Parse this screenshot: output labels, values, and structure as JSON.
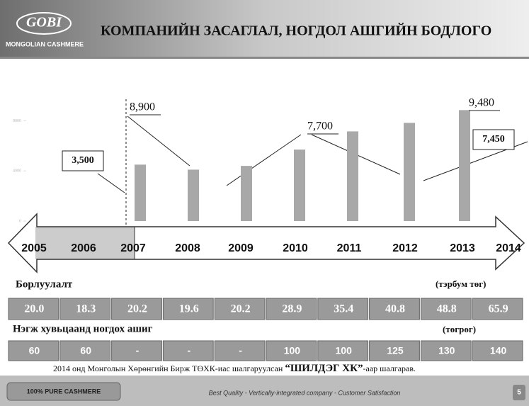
{
  "header": {
    "logo": "GOBI",
    "brand": "MONGOLIAN CASHMERE",
    "title": "КОМПАНИЙН ЗАСАГЛАЛ, НОГДОЛ АШГИЙН БОДЛОГО"
  },
  "chart_data": {
    "type": "bar",
    "categories": [
      "2007",
      "2008",
      "2009",
      "2010",
      "2011",
      "2012",
      "2013"
    ],
    "values": [
      4500,
      4100,
      4400,
      5700,
      7150,
      7830,
      8850
    ],
    "color": "#a8a8a8",
    "ylim": [
      0,
      10000
    ],
    "yticks": [
      0,
      4000,
      8000
    ]
  },
  "annotations": [
    "3,500",
    "8,900",
    "7,700",
    "9,480",
    "7,450"
  ],
  "timeline": [
    "2005",
    "2006",
    "2007",
    "2008",
    "2009",
    "2010",
    "2011",
    "2012",
    "2013",
    "2014"
  ],
  "sales": {
    "label": "Борлуулалт",
    "unit": "(тэрбум төг)",
    "values": [
      "20.0",
      "18.3",
      "20.2",
      "19.6",
      "20.2",
      "28.9",
      "35.4",
      "40.8",
      "48.8",
      "65.9"
    ]
  },
  "dividend": {
    "label": "Нэгж хувьцаанд ногдох ашиг",
    "unit": "(төгрөг)",
    "values": [
      "60",
      "60",
      "-",
      "-",
      "-",
      "100",
      "100",
      "125",
      "130",
      "140"
    ]
  },
  "note": {
    "before": "2014 онд Монголын Хөрөнгийн Бирж ТӨХК-иас шалгаруулсан ",
    "bold": "“ШИЛДЭГ ХК”",
    "after": "-аар шалгарав."
  },
  "footer": {
    "left": "100% PURE CASHMERE",
    "center": "Best Quality - Vertically-integrated company - Customer Satisfaction",
    "page": "5"
  }
}
